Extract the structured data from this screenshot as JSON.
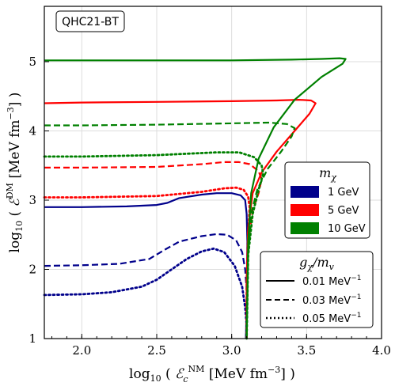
{
  "chart_data": {
    "type": "line",
    "badge": "QHC21-BT",
    "xlabel_main": "log",
    "xlabel_sub": "10",
    "xlabel_symbol": "ℰ",
    "xlabel_symbol_sub": "c",
    "xlabel_symbol_sup": "NM",
    "xlabel_unit": "[MeV fm",
    "xlabel_unit_exp": "−3",
    "xlabel_unit_end": "]",
    "ylabel_main": "log",
    "ylabel_sub": "10",
    "ylabel_symbol": "ℰ",
    "ylabel_symbol_sup": "DM",
    "ylabel_unit": "[MeV fm",
    "ylabel_unit_exp": "−3",
    "ylabel_unit_end": "]",
    "xlim": [
      1.75,
      4.0
    ],
    "ylim": [
      1.0,
      5.8
    ],
    "xticks": [
      2.0,
      2.5,
      3.0,
      3.5,
      4.0
    ],
    "xtick_labels": [
      "2.0",
      "2.5",
      "3.0",
      "3.5",
      "4.0"
    ],
    "yticks": [
      1,
      2,
      3,
      4,
      5
    ],
    "ytick_labels": [
      "1",
      "2",
      "3",
      "4",
      "5"
    ],
    "grid": true,
    "mass_legend": {
      "title": "m",
      "title_sub": "χ",
      "entries": [
        {
          "label": "1 GeV",
          "color": "#00008b"
        },
        {
          "label": "5 GeV",
          "color": "#ff0000"
        },
        {
          "label": "10 GeV",
          "color": "#008000"
        }
      ]
    },
    "coupling_legend": {
      "title_g": "g",
      "title_g_sub": "χ",
      "title_sep": "/",
      "title_m": "m",
      "title_m_sub": "v",
      "entries": [
        {
          "label": "0.01  MeV",
          "exp": "−1",
          "style": "solid"
        },
        {
          "label": "0.03  MeV",
          "exp": "−1",
          "style": "dashed"
        },
        {
          "label": "0.05  MeV",
          "exp": "−1",
          "style": "dotted"
        }
      ]
    },
    "series": [
      {
        "mass": "1 GeV",
        "coupling": "0.01  MeV",
        "color": "#00008b",
        "style": "solid",
        "x": [
          1.75,
          2.0,
          2.3,
          2.5,
          2.57,
          2.65,
          2.8,
          2.9,
          3.0,
          3.06,
          3.09,
          3.1,
          3.105,
          3.1,
          3.095
        ],
        "y": [
          2.9,
          2.9,
          2.91,
          2.93,
          2.96,
          3.03,
          3.08,
          3.1,
          3.1,
          3.07,
          3.0,
          2.8,
          2.4,
          1.6,
          1.0
        ]
      },
      {
        "mass": "1 GeV",
        "coupling": "0.03  MeV",
        "color": "#00008b",
        "style": "dashed",
        "x": [
          1.75,
          2.0,
          2.25,
          2.45,
          2.55,
          2.65,
          2.8,
          2.9,
          2.97,
          3.03,
          3.07,
          3.09,
          3.1,
          3.1,
          3.095
        ],
        "y": [
          2.05,
          2.06,
          2.08,
          2.15,
          2.28,
          2.4,
          2.48,
          2.51,
          2.5,
          2.42,
          2.25,
          2.0,
          1.7,
          1.3,
          1.0
        ]
      },
      {
        "mass": "1 GeV",
        "coupling": "0.05  MeV",
        "color": "#00008b",
        "style": "dotted",
        "x": [
          1.75,
          2.0,
          2.2,
          2.4,
          2.5,
          2.6,
          2.7,
          2.8,
          2.88,
          2.95,
          3.02,
          3.07,
          3.09,
          3.1,
          3.1
        ],
        "y": [
          1.63,
          1.64,
          1.67,
          1.75,
          1.85,
          2.0,
          2.15,
          2.26,
          2.3,
          2.25,
          2.05,
          1.75,
          1.45,
          1.2,
          1.0
        ]
      },
      {
        "mass": "5 GeV",
        "coupling": "0.01  MeV",
        "color": "#ff0000",
        "style": "solid",
        "x": [
          1.75,
          2.0,
          2.5,
          3.0,
          3.3,
          3.45,
          3.53,
          3.56,
          3.52,
          3.42,
          3.3,
          3.2,
          3.14,
          3.11,
          3.1,
          3.1
        ],
        "y": [
          4.4,
          4.41,
          4.42,
          4.43,
          4.44,
          4.45,
          4.44,
          4.4,
          4.25,
          4.0,
          3.7,
          3.4,
          3.1,
          2.6,
          1.8,
          1.0
        ]
      },
      {
        "mass": "5 GeV",
        "coupling": "0.03  MeV",
        "color": "#ff0000",
        "style": "dashed",
        "x": [
          1.75,
          2.0,
          2.5,
          2.8,
          2.95,
          3.05,
          3.12,
          3.18,
          3.2,
          3.18,
          3.14,
          3.11,
          3.1,
          3.1
        ],
        "y": [
          3.47,
          3.47,
          3.48,
          3.52,
          3.55,
          3.55,
          3.52,
          3.42,
          3.3,
          3.1,
          2.85,
          2.4,
          1.7,
          1.0
        ]
      },
      {
        "mass": "5 GeV",
        "coupling": "0.05  MeV",
        "color": "#ff0000",
        "style": "dotted",
        "x": [
          1.75,
          2.0,
          2.5,
          2.8,
          2.95,
          3.03,
          3.08,
          3.11,
          3.12,
          3.11,
          3.1,
          3.1
        ],
        "y": [
          3.04,
          3.04,
          3.06,
          3.12,
          3.17,
          3.18,
          3.15,
          3.05,
          2.9,
          2.5,
          1.8,
          1.0
        ]
      },
      {
        "mass": "10 GeV",
        "coupling": "0.01  MeV",
        "color": "#008000",
        "style": "solid",
        "x": [
          1.75,
          2.0,
          2.5,
          3.0,
          3.4,
          3.6,
          3.72,
          3.76,
          3.74,
          3.6,
          3.42,
          3.28,
          3.18,
          3.13,
          3.11,
          3.1
        ],
        "y": [
          5.02,
          5.02,
          5.02,
          5.02,
          5.03,
          5.04,
          5.05,
          5.04,
          4.97,
          4.78,
          4.45,
          4.05,
          3.6,
          3.1,
          2.4,
          1.0
        ]
      },
      {
        "mass": "10 GeV",
        "coupling": "0.03  MeV",
        "color": "#008000",
        "style": "dashed",
        "x": [
          1.75,
          2.0,
          2.5,
          3.0,
          3.25,
          3.37,
          3.42,
          3.4,
          3.33,
          3.24,
          3.17,
          3.13,
          3.11,
          3.1
        ],
        "y": [
          4.08,
          4.08,
          4.09,
          4.11,
          4.12,
          4.1,
          4.04,
          3.92,
          3.7,
          3.45,
          3.15,
          2.8,
          2.2,
          1.0
        ]
      },
      {
        "mass": "10 GeV",
        "coupling": "0.05  MeV",
        "color": "#008000",
        "style": "dotted",
        "x": [
          1.75,
          2.0,
          2.5,
          2.9,
          3.05,
          3.15,
          3.2,
          3.21,
          3.18,
          3.14,
          3.11,
          3.1
        ],
        "y": [
          3.63,
          3.63,
          3.65,
          3.69,
          3.69,
          3.62,
          3.5,
          3.38,
          3.15,
          2.8,
          2.2,
          1.0
        ]
      }
    ]
  }
}
